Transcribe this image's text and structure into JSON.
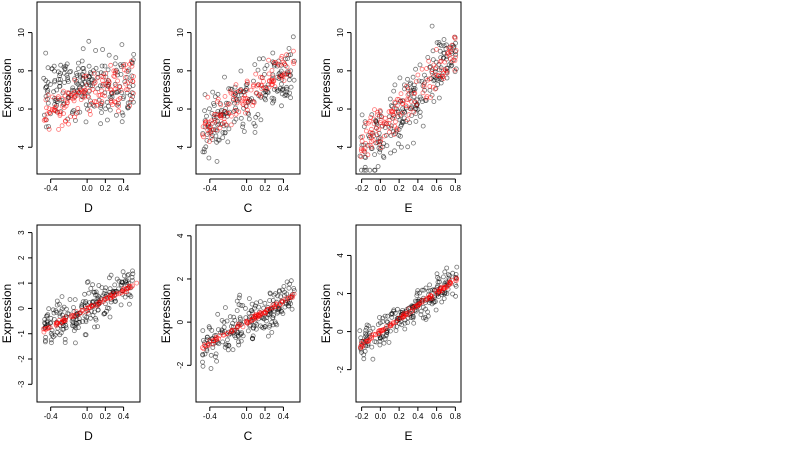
{
  "figure": {
    "background": "#ffffff",
    "colors": {
      "observed": "#000000",
      "fitted": "#ff0000",
      "frame": "#000000"
    }
  },
  "chart_data": [
    {
      "type": "scatter",
      "panel": "top-left",
      "xlabel": "D",
      "ylabel": "Expression",
      "xlim": [
        -0.55,
        0.58
      ],
      "ylim": [
        2.6,
        11.6
      ],
      "xticks": [
        -0.4,
        0.0,
        0.2,
        0.4
      ],
      "xtick_labels": [
        "-0.4",
        "0.0",
        "0.2",
        "0.4"
      ],
      "yticks": [
        4,
        6,
        8,
        10
      ],
      "ytick_labels": [
        "4",
        "6",
        "8",
        "10"
      ],
      "series": [
        {
          "role": "observed",
          "x_range": [
            -0.48,
            0.52
          ],
          "y_range": [
            2.8,
            11.4
          ],
          "trend": [
            0,
            0
          ],
          "spread": 1.8,
          "n": 220
        },
        {
          "role": "fitted",
          "x_range": [
            -0.48,
            0.52
          ],
          "y_range": [
            3.6,
            10.2
          ],
          "trend": [
            6.7,
            2.0
          ],
          "spread": 1.2,
          "n": 140
        }
      ]
    },
    {
      "type": "scatter",
      "panel": "top-middle",
      "xlabel": "C",
      "ylabel": "Expression",
      "xlim": [
        -0.55,
        0.58
      ],
      "ylim": [
        2.6,
        11.6
      ],
      "xticks": [
        -0.4,
        0.0,
        0.2,
        0.4
      ],
      "xtick_labels": [
        "-0.4",
        "0.0",
        "0.2",
        "0.4"
      ],
      "yticks": [
        4,
        6,
        8,
        10
      ],
      "ytick_labels": [
        "4",
        "6",
        "8",
        "10"
      ],
      "series": [
        {
          "role": "observed",
          "x_range": [
            -0.48,
            0.52
          ],
          "y_range": [
            2.8,
            11.2
          ],
          "trend": [
            6.5,
            3.0
          ],
          "spread": 1.6,
          "n": 200
        },
        {
          "role": "fitted",
          "x_range": [
            -0.48,
            0.52
          ],
          "y_range": [
            3.2,
            10.4
          ],
          "trend": [
            6.8,
            3.4
          ],
          "spread": 0.9,
          "n": 130
        }
      ]
    },
    {
      "type": "scatter",
      "panel": "top-right",
      "xlabel": "E",
      "ylabel": "Expression",
      "xlim": [
        -0.26,
        0.86
      ],
      "ylim": [
        2.6,
        11.6
      ],
      "xticks": [
        -0.2,
        0.0,
        0.2,
        0.4,
        0.6,
        0.8
      ],
      "xtick_labels": [
        "-0.2",
        "0.0",
        "0.2",
        "0.4",
        "0.6",
        "0.8"
      ],
      "yticks": [
        4,
        6,
        8,
        10
      ],
      "ytick_labels": [
        "4",
        "6",
        "8",
        "10"
      ],
      "series": [
        {
          "role": "observed",
          "x_range": [
            -0.22,
            0.82
          ],
          "y_range": [
            2.8,
            11.4
          ],
          "trend": [
            6.2,
            5.5
          ],
          "spread": 1.8,
          "n": 220
        },
        {
          "role": "fitted",
          "x_range": [
            -0.22,
            0.82
          ],
          "y_range": [
            3.5,
            10.5
          ],
          "trend": [
            6.5,
            5.0
          ],
          "spread": 1.1,
          "n": 140
        }
      ]
    },
    {
      "type": "scatter",
      "panel": "bottom-left",
      "xlabel": "D",
      "ylabel": "Expression",
      "xlim": [
        -0.55,
        0.58
      ],
      "ylim": [
        -3.7,
        3.3
      ],
      "xticks": [
        -0.4,
        0.0,
        0.2,
        0.4
      ],
      "xtick_labels": [
        "-0.4",
        "0.0",
        "0.2",
        "0.4"
      ],
      "yticks": [
        -3,
        -2,
        -1,
        0,
        1,
        2,
        3
      ],
      "ytick_labels": [
        "-3",
        "-2",
        "-1",
        "0",
        "1",
        "2",
        "3"
      ],
      "series": [
        {
          "role": "observed",
          "x_range": [
            -0.48,
            0.52
          ],
          "y_range": [
            -3.5,
            3.0
          ],
          "trend": [
            0.0,
            1.8
          ],
          "spread": 0.9,
          "n": 220
        },
        {
          "role": "fitted",
          "x_range": [
            -0.48,
            0.55
          ],
          "y_range": [
            -1.0,
            1.1
          ],
          "trend": [
            0.0,
            1.8
          ],
          "spread": 0.1,
          "n": 90
        }
      ]
    },
    {
      "type": "scatter",
      "panel": "bottom-middle",
      "xlabel": "C",
      "ylabel": "Expression",
      "xlim": [
        -0.55,
        0.58
      ],
      "ylim": [
        -3.7,
        4.5
      ],
      "xticks": [
        -0.4,
        0.0,
        0.2,
        0.4
      ],
      "xtick_labels": [
        "-0.4",
        "0.0",
        "0.2",
        "0.4"
      ],
      "yticks": [
        -2,
        0,
        2,
        4
      ],
      "ytick_labels": [
        "-2",
        "0",
        "2",
        "4"
      ],
      "series": [
        {
          "role": "observed",
          "x_range": [
            -0.48,
            0.52
          ],
          "y_range": [
            -3.5,
            4.3
          ],
          "trend": [
            0.0,
            2.4
          ],
          "spread": 1.0,
          "n": 220
        },
        {
          "role": "fitted",
          "x_range": [
            -0.48,
            0.52
          ],
          "y_range": [
            -1.4,
            1.3
          ],
          "trend": [
            0.0,
            2.4
          ],
          "spread": 0.12,
          "n": 90
        }
      ]
    },
    {
      "type": "scatter",
      "panel": "bottom-right",
      "xlabel": "E",
      "ylabel": "Expression",
      "xlim": [
        -0.26,
        0.86
      ],
      "ylim": [
        -3.7,
        5.6
      ],
      "xticks": [
        -0.2,
        0.0,
        0.2,
        0.4,
        0.6,
        0.8
      ],
      "xtick_labels": [
        "-0.2",
        "0.0",
        "0.2",
        "0.4",
        "0.6",
        "0.8"
      ],
      "yticks": [
        -2,
        0,
        2,
        4
      ],
      "ytick_labels": [
        "-2",
        "0",
        "2",
        "4"
      ],
      "series": [
        {
          "role": "observed",
          "x_range": [
            -0.22,
            0.82
          ],
          "y_range": [
            -3.5,
            5.4
          ],
          "trend": [
            0.0,
            3.4
          ],
          "spread": 0.9,
          "n": 220
        },
        {
          "role": "fitted",
          "x_range": [
            -0.22,
            0.82
          ],
          "y_range": [
            -0.9,
            3.2
          ],
          "trend": [
            0.0,
            3.4
          ],
          "spread": 0.12,
          "n": 110
        }
      ]
    }
  ]
}
